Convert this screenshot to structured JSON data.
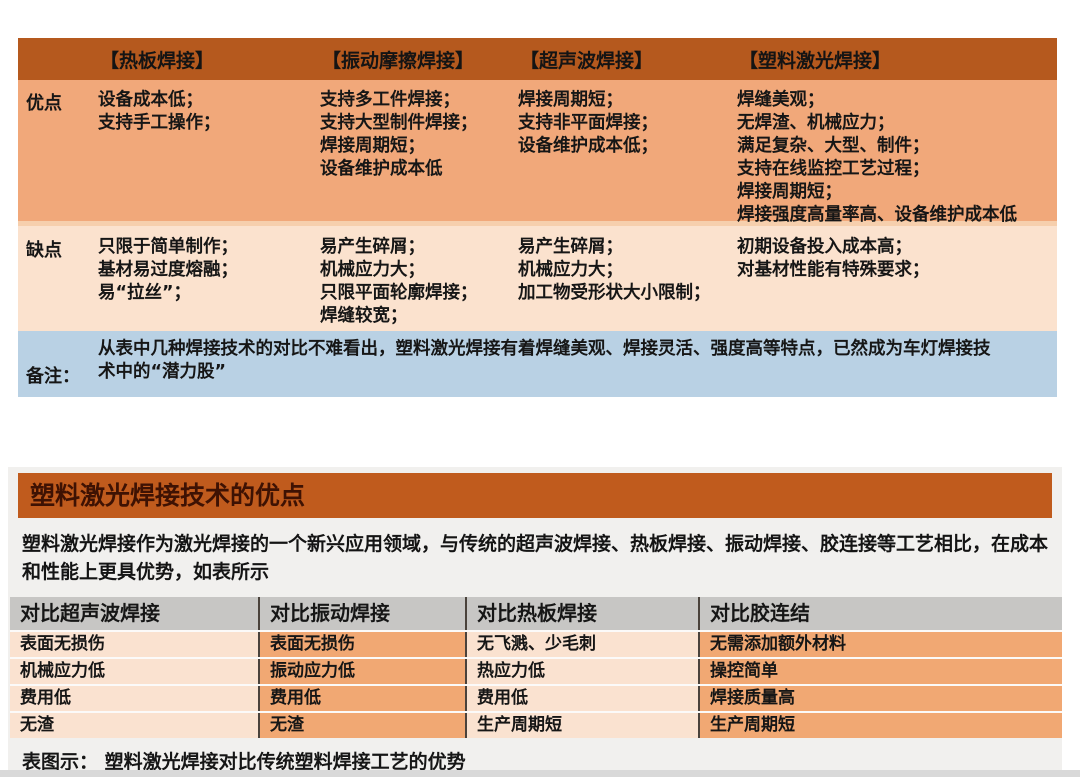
{
  "colors": {
    "table1_header_bg": "#B5591E",
    "table1_advantage_bg": "#F1A87A",
    "table1_disadvantage_bg": "#FBE2CE",
    "table1_note_bg": "#B9D1E4",
    "section_title_bg": "#C05B1D",
    "section_title_text": "#3E1203",
    "panel_bg": "#F1F0EE",
    "table2_header_bg": "#C7C6C4",
    "table2_light_cell": "#FAE2D0",
    "table2_dark_cell": "#F1A873"
  },
  "table1": {
    "columns": [
      "【热板焊接】",
      "【振动摩擦焊接】",
      "【超声波焊接】",
      "【塑料激光焊接】"
    ],
    "row_labels": {
      "advantages": "优点",
      "disadvantages": "缺点",
      "note": "备注："
    },
    "advantages": [
      "设备成本低；\n支持手工操作；",
      "支持多工件焊接；\n支持大型制件焊接；\n焊接周期短；\n设备维护成本低",
      "焊接周期短；\n支持非平面焊接；\n设备维护成本低；",
      "焊缝美观；\n无焊渣、机械应力；\n满足复杂、大型、制件；\n支持在线监控工艺过程；\n焊接周期短；\n焊接强度高量率高、设备维护成本低"
    ],
    "disadvantages": [
      "只限于简单制作；\n基材易过度熔融；\n易“拉丝”；",
      "易产生碎屑；\n机械应力大；\n只限平面轮廓焊接；\n焊缝较宽；",
      "易产生碎屑；\n机械应力大；\n加工物受形状大小限制；",
      "初期设备投入成本高；\n对基材性能有特殊要求；"
    ],
    "note": "从表中几种焊接技术的对比不难看出，塑料激光焊接有着焊缝美观、焊接灵活、强度高等特点，已然成为车灯焊接技术中的“潜力股”"
  },
  "section2": {
    "title": "塑料激光焊接技术的优点",
    "description": "塑料激光焊接作为激光焊接的一个新兴应用领域，与传统的超声波焊接、热板焊接、振动焊接、胶连接等工艺相比，在成本和性能上更具优势，如表所示",
    "table": {
      "headers": [
        "对比超声波焊接",
        "对比振动焊接",
        "对比热板焊接",
        "对比胶连结"
      ],
      "rows": [
        [
          "表面无损伤",
          "表面无损伤",
          "无飞溅、少毛刺",
          "无需添加额外材料"
        ],
        [
          "机械应力低",
          "振动应力低",
          "热应力低",
          "操控简单"
        ],
        [
          "费用低",
          "费用低",
          "费用低",
          "焊接质量高"
        ],
        [
          "无渣",
          "无渣",
          "生产周期短",
          "生产周期短"
        ]
      ]
    },
    "caption": "表图示： 塑料激光焊接对比传统塑料焊接工艺的优势"
  }
}
